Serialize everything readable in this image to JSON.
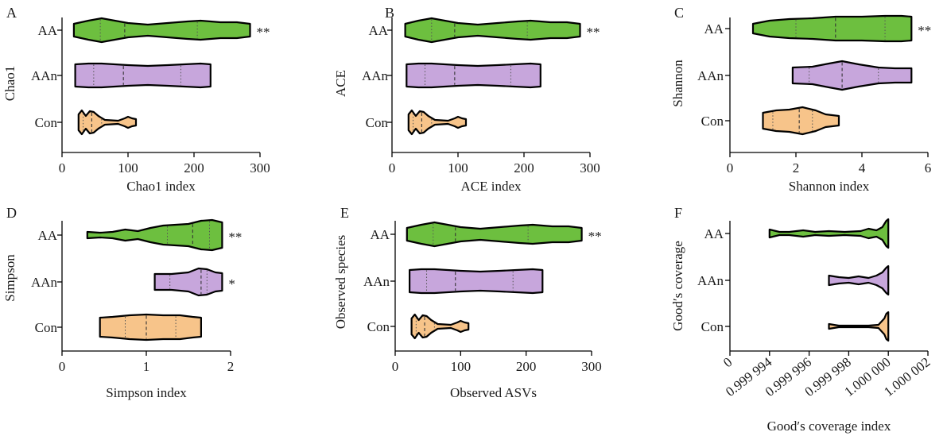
{
  "colors": {
    "AA": "#6dbf3f",
    "AAn": "#c7a6dc",
    "Con": "#f7c48a"
  },
  "chart_data": [
    {
      "panel": "A",
      "type": "violin",
      "xlabel": "Chao1 index",
      "ylabel": "Chao1",
      "xlim": [
        0,
        300
      ],
      "xticks": [
        0,
        100,
        200,
        300
      ],
      "categories": [
        "AA",
        "AAn",
        "Con"
      ],
      "series": [
        {
          "name": "AA",
          "min": 18,
          "max": 285,
          "q1": 58,
          "median": 95,
          "q3": 205,
          "sig": "**",
          "profile": [
            [
              18,
              8
            ],
            [
              40,
              12
            ],
            [
              60,
              15
            ],
            [
              80,
              12
            ],
            [
              100,
              9
            ],
            [
              130,
              7
            ],
            [
              160,
              9
            ],
            [
              190,
              11
            ],
            [
              210,
              12
            ],
            [
              240,
              10
            ],
            [
              265,
              10
            ],
            [
              285,
              8
            ]
          ]
        },
        {
          "name": "AAn",
          "min": 20,
          "max": 225,
          "q1": 48,
          "median": 93,
          "q3": 180,
          "sig": "",
          "profile": [
            [
              20,
              14
            ],
            [
              40,
              15
            ],
            [
              60,
              15
            ],
            [
              80,
              14
            ],
            [
              100,
              13
            ],
            [
              130,
              12
            ],
            [
              160,
              13
            ],
            [
              185,
              14
            ],
            [
              210,
              15
            ],
            [
              225,
              14
            ]
          ]
        },
        {
          "name": "Con",
          "min": 25,
          "max": 112,
          "q1": 32,
          "median": 45,
          "q3": 60,
          "sig": "",
          "profile": [
            [
              25,
              10
            ],
            [
              30,
              15
            ],
            [
              36,
              8
            ],
            [
              42,
              14
            ],
            [
              48,
              13
            ],
            [
              55,
              8
            ],
            [
              65,
              3
            ],
            [
              85,
              2
            ],
            [
              95,
              5
            ],
            [
              100,
              7
            ],
            [
              106,
              5
            ],
            [
              112,
              4
            ]
          ]
        }
      ]
    },
    {
      "panel": "B",
      "type": "violin",
      "xlabel": "ACE index",
      "ylabel": "ACE",
      "xlim": [
        0,
        300
      ],
      "xticks": [
        0,
        100,
        200,
        300
      ],
      "categories": [
        "AA",
        "AAn",
        "Con"
      ],
      "series": [
        {
          "name": "AA",
          "min": 20,
          "max": 285,
          "q1": 60,
          "median": 95,
          "q3": 205,
          "sig": "**",
          "profile": [
            [
              20,
              8
            ],
            [
              40,
              12
            ],
            [
              60,
              15
            ],
            [
              80,
              12
            ],
            [
              100,
              9
            ],
            [
              130,
              7
            ],
            [
              160,
              9
            ],
            [
              190,
              11
            ],
            [
              210,
              12
            ],
            [
              240,
              10
            ],
            [
              265,
              10
            ],
            [
              285,
              8
            ]
          ]
        },
        {
          "name": "AAn",
          "min": 22,
          "max": 225,
          "q1": 50,
          "median": 95,
          "q3": 180,
          "sig": "",
          "profile": [
            [
              22,
              14
            ],
            [
              40,
              15
            ],
            [
              60,
              15
            ],
            [
              80,
              14
            ],
            [
              100,
              13
            ],
            [
              130,
              12
            ],
            [
              160,
              13
            ],
            [
              185,
              14
            ],
            [
              210,
              15
            ],
            [
              225,
              14
            ]
          ]
        },
        {
          "name": "Con",
          "min": 25,
          "max": 112,
          "q1": 32,
          "median": 45,
          "q3": 60,
          "sig": "",
          "profile": [
            [
              25,
              10
            ],
            [
              30,
              15
            ],
            [
              36,
              8
            ],
            [
              42,
              14
            ],
            [
              48,
              13
            ],
            [
              55,
              8
            ],
            [
              65,
              3
            ],
            [
              85,
              2
            ],
            [
              95,
              5
            ],
            [
              100,
              7
            ],
            [
              106,
              5
            ],
            [
              112,
              4
            ]
          ]
        }
      ]
    },
    {
      "panel": "C",
      "type": "violin",
      "xlabel": "Shannon index",
      "ylabel": "Shannon",
      "xlim": [
        0,
        6
      ],
      "xticks": [
        0,
        2,
        4,
        6
      ],
      "categories": [
        "AA",
        "AAn",
        "Con"
      ],
      "series": [
        {
          "name": "AA",
          "min": 0.7,
          "max": 5.5,
          "q1": 2.0,
          "median": 3.2,
          "q3": 4.7,
          "sig": "**",
          "profile": [
            [
              0.7,
              6
            ],
            [
              1.2,
              10
            ],
            [
              1.8,
              12
            ],
            [
              2.5,
              13
            ],
            [
              3.2,
              15
            ],
            [
              4.0,
              15
            ],
            [
              4.7,
              16
            ],
            [
              5.2,
              16
            ],
            [
              5.5,
              15
            ]
          ]
        },
        {
          "name": "AAn",
          "min": 1.9,
          "max": 5.5,
          "q1": 2.4,
          "median": 3.4,
          "q3": 4.5,
          "sig": "",
          "profile": [
            [
              1.9,
              10
            ],
            [
              2.5,
              11
            ],
            [
              3.0,
              15
            ],
            [
              3.4,
              18
            ],
            [
              3.9,
              14
            ],
            [
              4.5,
              10
            ],
            [
              5.0,
              9
            ],
            [
              5.5,
              9
            ]
          ]
        },
        {
          "name": "Con",
          "min": 1.0,
          "max": 3.3,
          "q1": 1.3,
          "median": 2.1,
          "q3": 2.5,
          "sig": "",
          "profile": [
            [
              1.0,
              10
            ],
            [
              1.4,
              13
            ],
            [
              1.8,
              14
            ],
            [
              2.2,
              17
            ],
            [
              2.6,
              13
            ],
            [
              2.9,
              8
            ],
            [
              3.3,
              6
            ]
          ]
        }
      ]
    },
    {
      "panel": "D",
      "type": "violin",
      "xlabel": "Simpson index",
      "ylabel": "Simpson",
      "xlim": [
        0,
        2
      ],
      "xticks": [
        0,
        1,
        2
      ],
      "categories": [
        "AA",
        "AAn",
        "Con"
      ],
      "series": [
        {
          "name": "AA",
          "min": 0.3,
          "max": 1.9,
          "q1": 1.25,
          "median": 1.55,
          "q3": 1.75,
          "sig": "**",
          "profile": [
            [
              0.3,
              4
            ],
            [
              0.45,
              3
            ],
            [
              0.6,
              4
            ],
            [
              0.75,
              7
            ],
            [
              0.9,
              5
            ],
            [
              1.05,
              9
            ],
            [
              1.2,
              12
            ],
            [
              1.35,
              13
            ],
            [
              1.5,
              14
            ],
            [
              1.65,
              18
            ],
            [
              1.78,
              19
            ],
            [
              1.9,
              16
            ]
          ]
        },
        {
          "name": "AAn",
          "min": 1.1,
          "max": 1.9,
          "q1": 1.28,
          "median": 1.65,
          "q3": 1.72,
          "sig": "*",
          "profile": [
            [
              1.1,
              10
            ],
            [
              1.3,
              10
            ],
            [
              1.5,
              12
            ],
            [
              1.62,
              17
            ],
            [
              1.72,
              16
            ],
            [
              1.82,
              12
            ],
            [
              1.9,
              11
            ]
          ]
        },
        {
          "name": "Con",
          "min": 0.45,
          "max": 1.65,
          "q1": 0.75,
          "median": 1.0,
          "q3": 1.35,
          "sig": "",
          "profile": [
            [
              0.45,
              12
            ],
            [
              0.6,
              13
            ],
            [
              0.8,
              15
            ],
            [
              1.0,
              16
            ],
            [
              1.2,
              15
            ],
            [
              1.4,
              15
            ],
            [
              1.55,
              13
            ],
            [
              1.65,
              12
            ]
          ]
        }
      ]
    },
    {
      "panel": "E",
      "type": "violin",
      "xlabel": "Observed ASVs",
      "ylabel": "Observed species",
      "xlim": [
        0,
        300
      ],
      "xticks": [
        0,
        100,
        200,
        300
      ],
      "categories": [
        "AA",
        "AAn",
        "Con"
      ],
      "series": [
        {
          "name": "AA",
          "min": 18,
          "max": 285,
          "q1": 58,
          "median": 92,
          "q3": 203,
          "sig": "**",
          "profile": [
            [
              18,
              8
            ],
            [
              40,
              12
            ],
            [
              60,
              15
            ],
            [
              80,
              12
            ],
            [
              100,
              9
            ],
            [
              130,
              7
            ],
            [
              160,
              9
            ],
            [
              190,
              11
            ],
            [
              210,
              12
            ],
            [
              240,
              10
            ],
            [
              265,
              10
            ],
            [
              285,
              8
            ]
          ]
        },
        {
          "name": "AAn",
          "min": 22,
          "max": 225,
          "q1": 48,
          "median": 92,
          "q3": 180,
          "sig": "",
          "profile": [
            [
              22,
              14
            ],
            [
              40,
              15
            ],
            [
              60,
              15
            ],
            [
              80,
              14
            ],
            [
              100,
              13
            ],
            [
              130,
              12
            ],
            [
              160,
              13
            ],
            [
              185,
              14
            ],
            [
              210,
              15
            ],
            [
              225,
              14
            ]
          ]
        },
        {
          "name": "Con",
          "min": 25,
          "max": 112,
          "q1": 32,
          "median": 45,
          "q3": 60,
          "sig": "",
          "profile": [
            [
              25,
              10
            ],
            [
              30,
              15
            ],
            [
              36,
              8
            ],
            [
              42,
              14
            ],
            [
              48,
              13
            ],
            [
              55,
              8
            ],
            [
              65,
              3
            ],
            [
              85,
              2
            ],
            [
              95,
              5
            ],
            [
              100,
              7
            ],
            [
              106,
              5
            ],
            [
              112,
              4
            ]
          ]
        }
      ]
    },
    {
      "panel": "F",
      "type": "violin",
      "xlabel": "Good′s coverage index",
      "ylabel": "Good′s coverage",
      "xlim": [
        0.999992,
        1.000002
      ],
      "xticks": [
        0.999992,
        0.999994,
        0.999996,
        0.999998,
        1.0,
        1.000002
      ],
      "xticklabels": [
        "0",
        "0.999 994",
        "0.999 996",
        "0.999 998",
        "1.000 000",
        "1.000 002"
      ],
      "categories": [
        "AA",
        "AAn",
        "Con"
      ],
      "series": [
        {
          "name": "AA",
          "min": 0.999994,
          "max": 1.0,
          "sig": "",
          "profile": [
            [
              0.999994,
              5
            ],
            [
              0.9999945,
              2
            ],
            [
              0.999995,
              2
            ],
            [
              0.9999957,
              4
            ],
            [
              0.9999963,
              2
            ],
            [
              0.999997,
              3
            ],
            [
              0.9999978,
              2
            ],
            [
              0.9999986,
              3
            ],
            [
              0.999999,
              6
            ],
            [
              0.9999994,
              4
            ],
            [
              0.9999997,
              8
            ],
            [
              0.9999999,
              16
            ],
            [
              1.0,
              18
            ]
          ]
        },
        {
          "name": "AAn",
          "min": 0.999997,
          "max": 1.0,
          "sig": "",
          "profile": [
            [
              0.999997,
              6
            ],
            [
              0.9999975,
              4
            ],
            [
              0.999998,
              3
            ],
            [
              0.9999985,
              5
            ],
            [
              0.999999,
              3
            ],
            [
              0.9999994,
              6
            ],
            [
              0.9999997,
              10
            ],
            [
              0.9999999,
              16
            ],
            [
              1.0,
              18
            ]
          ]
        },
        {
          "name": "Con",
          "min": 0.999997,
          "max": 1.0,
          "sig": "",
          "profile": [
            [
              0.999997,
              3
            ],
            [
              0.9999975,
              1
            ],
            [
              0.999998,
              1
            ],
            [
              0.999999,
              1
            ],
            [
              0.9999995,
              2
            ],
            [
              0.9999998,
              10
            ],
            [
              0.9999999,
              16
            ],
            [
              1.0,
              18
            ]
          ]
        }
      ]
    }
  ]
}
